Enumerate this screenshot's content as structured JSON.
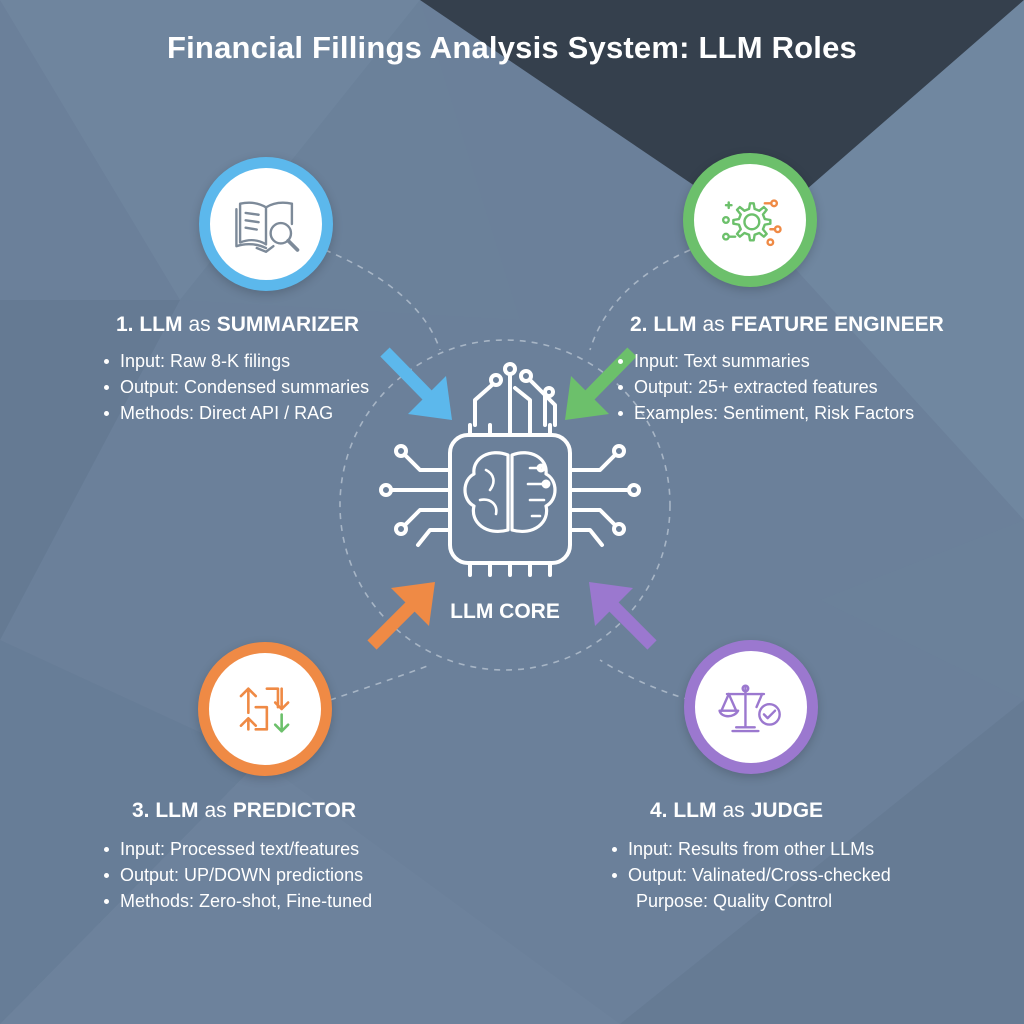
{
  "title": "Financial Fillings Analysis System: LLM Roles",
  "core": {
    "label": "LLM CORE",
    "icon": "brain-chip-icon"
  },
  "roles": [
    {
      "number": "1. LLM",
      "as": "as",
      "name": "SUMMARIZER",
      "icon": "book-magnifier-icon",
      "color": "#5cb8ec",
      "bullets": [
        "Input: Raw 8-K filings",
        "Output: Condensed summaries",
        "Methods: Direct API / RAG"
      ]
    },
    {
      "number": "2. LLM",
      "as": "as",
      "name": "FEATURE ENGINEER",
      "icon": "gear-nodes-icon",
      "color": "#6cc06b",
      "bullets": [
        "Input: Text summaries",
        "Output: 25+ extracted features",
        "Examples: Sentiment, Risk Factors"
      ]
    },
    {
      "number": "3. LLM",
      "as": "as",
      "name": "PREDICTOR",
      "icon": "up-down-arrows-icon",
      "color": "#ef8a45",
      "bullets": [
        "Input: Processed text/features",
        "Output: UP/DOWN predictions",
        "Methods: Zero-shot, Fine-tuned"
      ]
    },
    {
      "number": "4. LLM",
      "as": "as",
      "name": "JUDGE",
      "icon": "scale-check-icon",
      "color": "#9b78cf",
      "bullets": [
        "Input: Results from other LLMs",
        "Output: Valinated/Cross-checked",
        "Purpose: Quality Control"
      ]
    }
  ]
}
